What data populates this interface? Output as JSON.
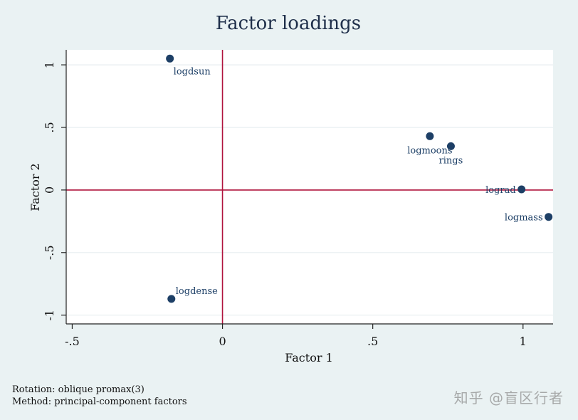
{
  "chart_data": {
    "type": "scatter",
    "title": "Factor loadings",
    "xlabel": "Factor 1",
    "ylabel": "Factor 2",
    "xlim": [
      -0.52,
      1.1
    ],
    "ylim": [
      -1.07,
      1.12
    ],
    "x_ticks": [
      -0.5,
      0,
      0.5,
      1
    ],
    "x_tick_labels": [
      "-.5",
      "0",
      ".5",
      "1"
    ],
    "y_ticks": [
      -1,
      -0.5,
      0,
      0.5,
      1
    ],
    "y_tick_labels": [
      "-1",
      "-.5",
      "0",
      ".5",
      "1"
    ],
    "grid": true,
    "reference_lines": {
      "x": 0,
      "y": 0
    },
    "points": [
      {
        "label": "logdsun",
        "x": -0.175,
        "y": 1.05,
        "label_pos": "below-right"
      },
      {
        "label": "logmoons",
        "x": 0.69,
        "y": 0.43,
        "label_pos": "below"
      },
      {
        "label": "rings",
        "x": 0.76,
        "y": 0.35,
        "label_pos": "below"
      },
      {
        "label": "lograd",
        "x": 0.995,
        "y": 0.005,
        "label_pos": "left"
      },
      {
        "label": "logmass",
        "x": 1.085,
        "y": -0.215,
        "label_pos": "left"
      },
      {
        "label": "logdense",
        "x": -0.17,
        "y": -0.87,
        "label_pos": "above-right"
      }
    ],
    "colors": {
      "marker": "#1d3f66",
      "reference_line": "#b0133d",
      "grid": "#e7eef0",
      "title": "#1f2f4a"
    }
  },
  "notes": {
    "rotation": "Rotation: oblique promax(3)",
    "method": "Method: principal-component factors"
  },
  "watermark": "知乎 @盲区行者"
}
